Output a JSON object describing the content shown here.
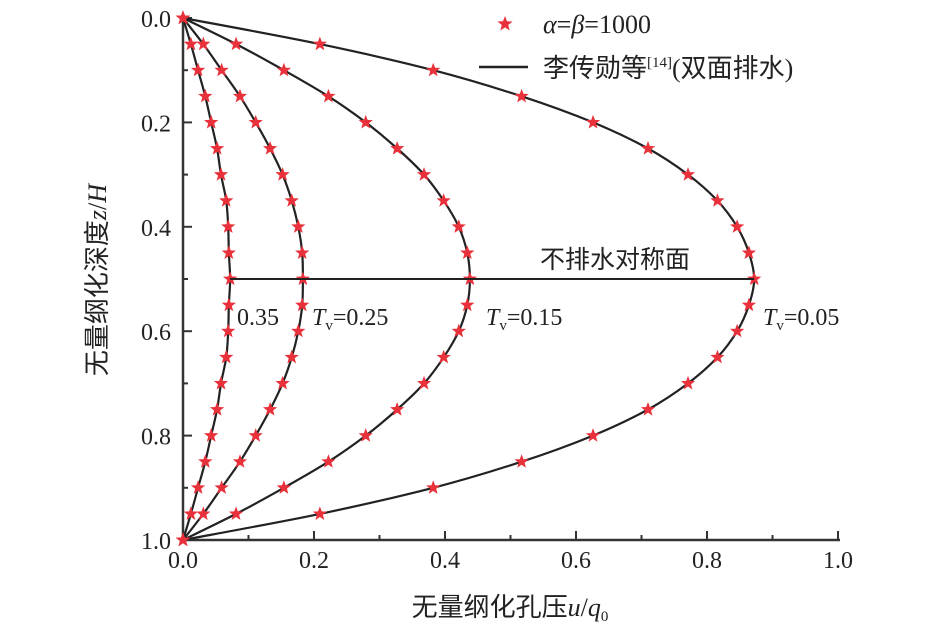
{
  "chart_data": {
    "type": "line",
    "xlabel": "无量纲化孔压u/q0",
    "xlabel_parts": {
      "main": "无量纲化孔压",
      "var": "u",
      "slash": "/",
      "q": "q",
      "sub": "0"
    },
    "ylabel": "无量纲化深度z/H",
    "ylabel_parts": {
      "main": "无量纲化深度",
      "var": "z",
      "slash": "/",
      "H": "H"
    },
    "xlim": [
      0,
      1.0
    ],
    "ylim": [
      0,
      1.0
    ],
    "y_inverted": true,
    "x_ticks": [
      "0.0",
      "0.2",
      "0.4",
      "0.6",
      "0.8",
      "1.0"
    ],
    "y_ticks": [
      "0.0",
      "0.2",
      "0.4",
      "0.6",
      "0.8",
      "1.0"
    ],
    "grid": false,
    "legend": {
      "placement": "top-right",
      "markers_label": "α=β=1000",
      "markers_parts": {
        "a": "α",
        "eq1": "=",
        "b": "β",
        "eq2": "=1000"
      },
      "line_label": "李传勋等[14](双面排水)",
      "line_parts": {
        "main": "李传勋等",
        "ref": "[14]",
        "tail": "(双面排水)"
      }
    },
    "annotation": "不排水对称面",
    "symmetry_plane_z": 0.5,
    "z": [
      0,
      0.05,
      0.1,
      0.15,
      0.2,
      0.25,
      0.3,
      0.35,
      0.4,
      0.45,
      0.5,
      0.55,
      0.6,
      0.65,
      0.7,
      0.75,
      0.8,
      0.85,
      0.9,
      0.95,
      1.0
    ],
    "series": [
      {
        "Tv": "0.05",
        "label": "Tv=0.05",
        "values": [
          0,
          0.209,
          0.382,
          0.517,
          0.626,
          0.71,
          0.771,
          0.816,
          0.846,
          0.864,
          0.872,
          0.864,
          0.846,
          0.816,
          0.771,
          0.71,
          0.626,
          0.517,
          0.382,
          0.209,
          0
        ]
      },
      {
        "Tv": "0.15",
        "label": "Tv=0.15",
        "values": [
          0,
          0.081,
          0.154,
          0.222,
          0.279,
          0.327,
          0.368,
          0.398,
          0.421,
          0.434,
          0.438,
          0.434,
          0.421,
          0.398,
          0.368,
          0.327,
          0.279,
          0.222,
          0.154,
          0.081,
          0
        ]
      },
      {
        "Tv": "0.25",
        "label": "Tv=0.25",
        "values": [
          0,
          0.031,
          0.059,
          0.087,
          0.111,
          0.133,
          0.152,
          0.166,
          0.176,
          0.182,
          0.183,
          0.182,
          0.176,
          0.166,
          0.152,
          0.133,
          0.111,
          0.087,
          0.059,
          0.031,
          0
        ]
      },
      {
        "Tv": "0.35",
        "label": "0.35",
        "values": [
          0,
          0.012,
          0.023,
          0.034,
          0.043,
          0.052,
          0.058,
          0.066,
          0.069,
          0.07,
          0.072,
          0.07,
          0.069,
          0.066,
          0.058,
          0.052,
          0.043,
          0.034,
          0.023,
          0.012,
          0
        ]
      }
    ],
    "colors": {
      "marker": "#e8313a",
      "line": "#222222",
      "axis": "#333333"
    }
  }
}
